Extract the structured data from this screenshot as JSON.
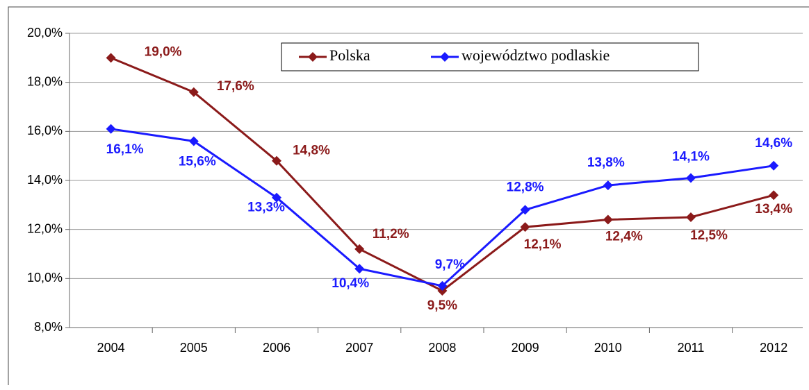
{
  "chart_data": {
    "type": "line",
    "categories": [
      "2004",
      "2005",
      "2006",
      "2007",
      "2008",
      "2009",
      "2010",
      "2011",
      "2012"
    ],
    "series": [
      {
        "name": "Polska",
        "color": "#8b1a1a",
        "values": [
          19.0,
          17.6,
          14.8,
          11.2,
          9.5,
          12.1,
          12.4,
          12.5,
          13.4
        ],
        "value_labels": [
          "19,0%",
          "17,6%",
          "14,8%",
          "11,2%",
          "9,5%",
          "12,1%",
          "12,4%",
          "12,5%",
          "13,4%"
        ]
      },
      {
        "name": "województwo podlaskie",
        "color": "#1a1aff",
        "values": [
          16.1,
          15.6,
          13.3,
          10.4,
          9.7,
          12.8,
          13.8,
          14.1,
          14.6
        ],
        "value_labels": [
          "16,1%",
          "15,6%",
          "13,3%",
          "10,4%",
          "9,7%",
          "12,8%",
          "13,8%",
          "14,1%",
          "14,6%"
        ]
      }
    ],
    "ylim": [
      8,
      20
    ],
    "yticks": [
      {
        "value": 8,
        "label": "8,0%"
      },
      {
        "value": 10,
        "label": "10,0%"
      },
      {
        "value": 12,
        "label": "12,0%"
      },
      {
        "value": 14,
        "label": "14,0%"
      },
      {
        "value": 16,
        "label": "16,0%"
      },
      {
        "value": 18,
        "label": "18,0%"
      },
      {
        "value": 20,
        "label": "20,0%"
      }
    ],
    "grid": true
  }
}
